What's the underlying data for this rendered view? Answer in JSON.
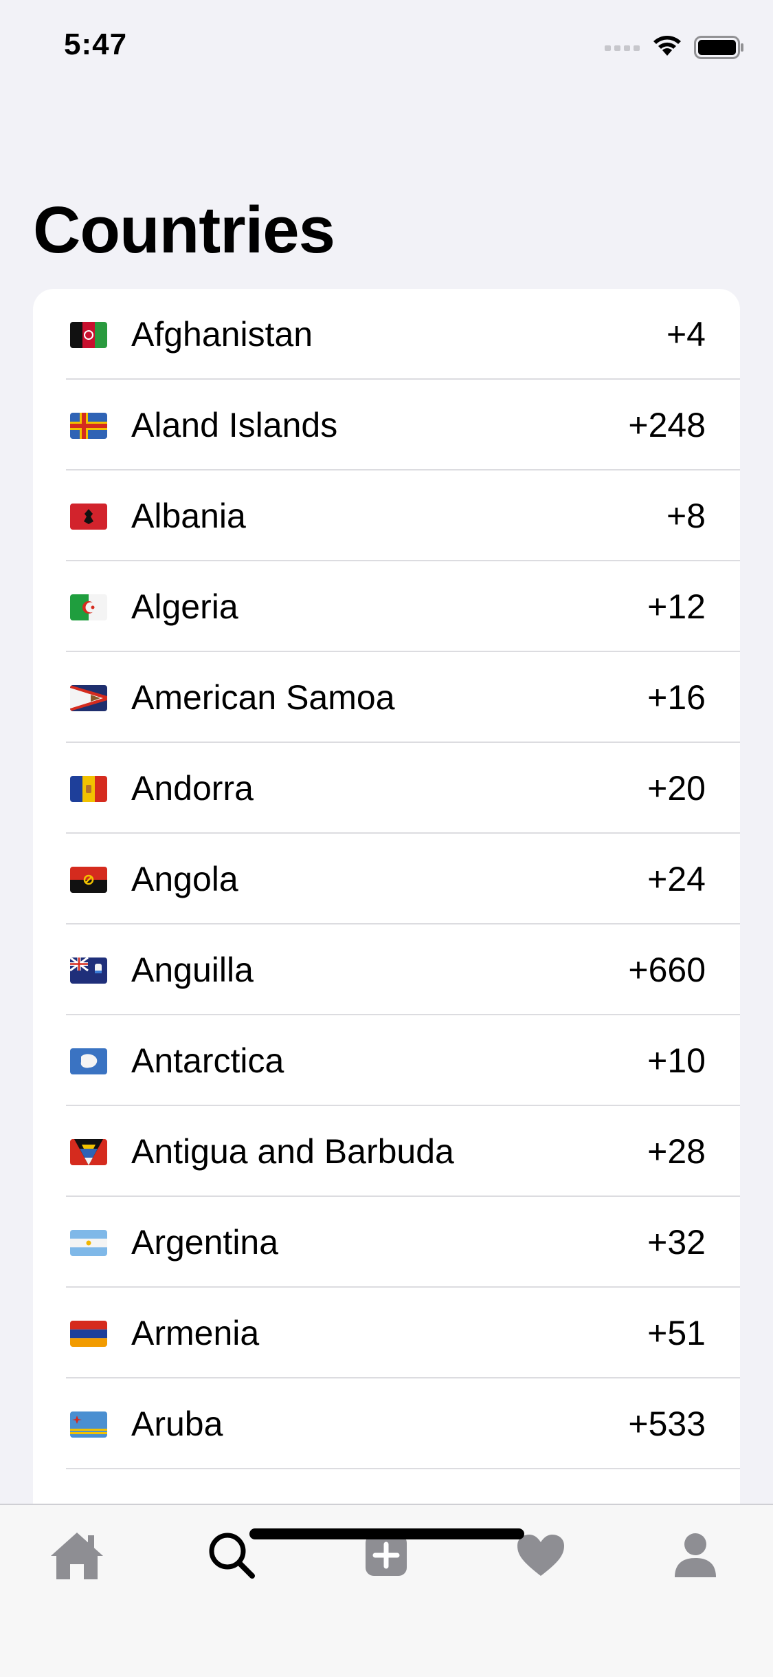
{
  "status_bar": {
    "time": "5:47"
  },
  "page_title": "Countries",
  "countries": [
    {
      "name": "Afghanistan",
      "code": "+4"
    },
    {
      "name": "Aland Islands",
      "code": "+248"
    },
    {
      "name": "Albania",
      "code": "+8"
    },
    {
      "name": "Algeria",
      "code": "+12"
    },
    {
      "name": "American Samoa",
      "code": "+16"
    },
    {
      "name": "Andorra",
      "code": "+20"
    },
    {
      "name": "Angola",
      "code": "+24"
    },
    {
      "name": "Anguilla",
      "code": "+660"
    },
    {
      "name": "Antarctica",
      "code": "+10"
    },
    {
      "name": "Antigua and Barbuda",
      "code": "+28"
    },
    {
      "name": "Argentina",
      "code": "+32"
    },
    {
      "name": "Armenia",
      "code": "+51"
    },
    {
      "name": "Aruba",
      "code": "+533"
    }
  ],
  "tab_bar": {
    "tabs": [
      {
        "id": "home",
        "icon": "home-icon",
        "active": false
      },
      {
        "id": "search",
        "icon": "search-icon",
        "active": true
      },
      {
        "id": "add",
        "icon": "add-icon",
        "active": false
      },
      {
        "id": "favorites",
        "icon": "heart-icon",
        "active": false
      },
      {
        "id": "profile",
        "icon": "person-icon",
        "active": false
      }
    ]
  },
  "colors": {
    "background": "#f2f2f7",
    "card": "#ffffff",
    "separator": "#dcdce0",
    "tab_inactive": "#8e8e93",
    "tab_active": "#000000"
  }
}
